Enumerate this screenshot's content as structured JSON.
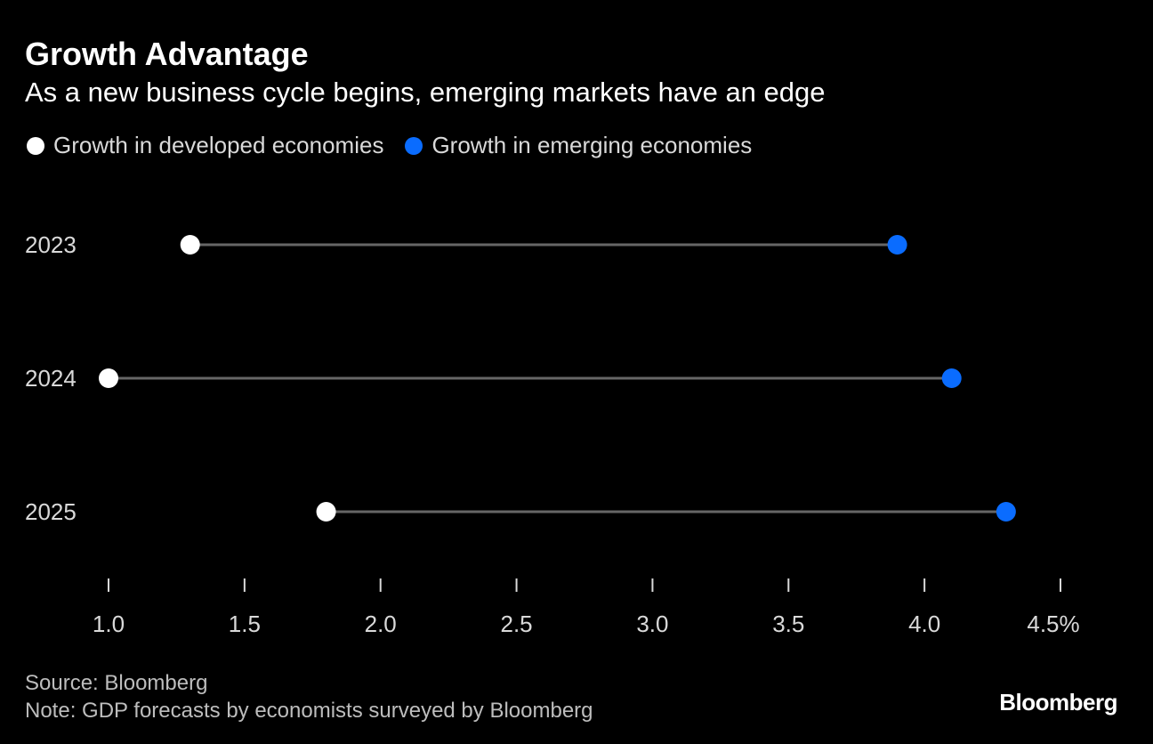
{
  "title": "Growth Advantage",
  "subtitle": "As a new business cycle begins, emerging markets have an edge",
  "source": "Source: Bloomberg",
  "note": "Note: GDP forecasts by economists surveyed by Bloomberg",
  "logo": "Bloomberg",
  "colors": {
    "background": "#000000",
    "developed": "#ffffff",
    "emerging": "#0a6cff",
    "connector": "#666666"
  },
  "chart_data": {
    "type": "dumbbell",
    "title": "Growth Advantage",
    "subtitle": "As a new business cycle begins, emerging markets have an edge",
    "categories": [
      "2023",
      "2024",
      "2025"
    ],
    "series": [
      {
        "name": "Growth in developed economies",
        "color": "#ffffff",
        "values": [
          1.3,
          1.0,
          1.8
        ]
      },
      {
        "name": "Growth in emerging economies",
        "color": "#0a6cff",
        "values": [
          3.9,
          4.1,
          4.3
        ]
      }
    ],
    "xlim": [
      1.0,
      4.5
    ],
    "xticks": [
      1.0,
      1.5,
      2.0,
      2.5,
      3.0,
      3.5,
      4.0,
      4.5
    ],
    "xtick_labels": [
      "1.0",
      "1.5",
      "2.0",
      "2.5",
      "3.0",
      "3.5",
      "4.0",
      "4.5%"
    ],
    "grid": false,
    "legend_position": "top-left"
  }
}
